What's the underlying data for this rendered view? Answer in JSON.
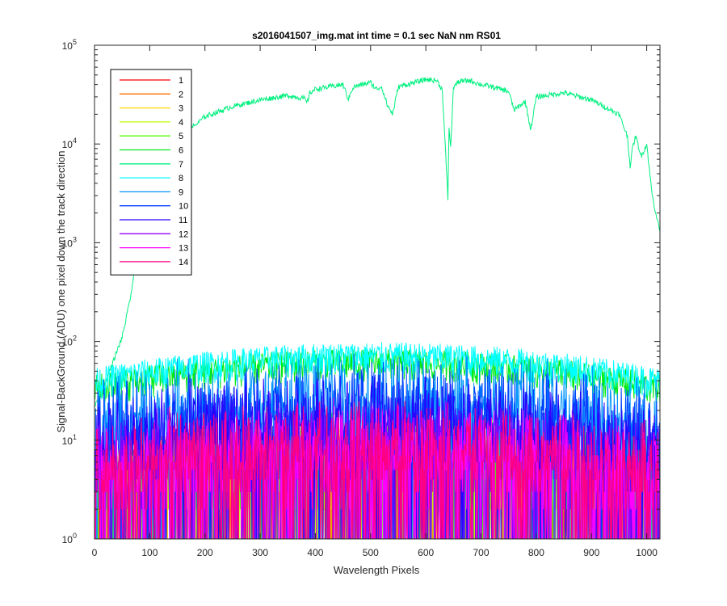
{
  "chart_data": {
    "type": "line",
    "title": "s2016041507_img.mat int time = 0.1 sec  NaN nm RS01",
    "xlabel": "Wavelength Pixels",
    "ylabel": "Signal-BackGround (ADU) one pixel down the track direction",
    "xlim": [
      0,
      1024
    ],
    "ylim": [
      1,
      100000
    ],
    "yscale": "log",
    "grid": false,
    "legend_placement": "top-left",
    "x_ticks": [
      {
        "label": "0",
        "value": 0
      },
      {
        "label": "100",
        "value": 100
      },
      {
        "label": "200",
        "value": 200
      },
      {
        "label": "300",
        "value": 300
      },
      {
        "label": "400",
        "value": 400
      },
      {
        "label": "500",
        "value": 500
      },
      {
        "label": "600",
        "value": 600
      },
      {
        "label": "700",
        "value": 700
      },
      {
        "label": "800",
        "value": 800
      },
      {
        "label": "900",
        "value": 900
      },
      {
        "label": "1000",
        "value": 1000
      }
    ],
    "y_ticks": [
      {
        "base": "10",
        "exp": "0",
        "value": 1
      },
      {
        "base": "10",
        "exp": "1",
        "value": 10
      },
      {
        "base": "10",
        "exp": "2",
        "value": 100
      },
      {
        "base": "10",
        "exp": "3",
        "value": 1000
      },
      {
        "base": "10",
        "exp": "4",
        "value": 10000
      },
      {
        "base": "10",
        "exp": "5",
        "value": 100000
      }
    ],
    "series": [
      {
        "name": "1",
        "color": "#ff0000",
        "level": 6
      },
      {
        "name": "2",
        "color": "#ff6a00",
        "level": 6
      },
      {
        "name": "3",
        "color": "#ffd500",
        "level": 6
      },
      {
        "name": "4",
        "color": "#bfff00",
        "level": 6
      },
      {
        "name": "5",
        "color": "#55ff00",
        "level": 8
      },
      {
        "name": "6",
        "color": "#00ea15",
        "level": 60
      },
      {
        "name": "7",
        "color": "#00f07f",
        "level": 30000,
        "profile_x": [
          0,
          10,
          30,
          50,
          60,
          70,
          75,
          80,
          90,
          100,
          110,
          120,
          130,
          140,
          150,
          160,
          175,
          180,
          200,
          250,
          300,
          350,
          380,
          385,
          390,
          400,
          450,
          460,
          465,
          470,
          500,
          510,
          520,
          530,
          540,
          550,
          580,
          600,
          620,
          630,
          640,
          642,
          645,
          650,
          660,
          680,
          700,
          720,
          750,
          760,
          780,
          790,
          800,
          850,
          900,
          950,
          965,
          970,
          975,
          980,
          990,
          1000,
          1010,
          1015,
          1024
        ],
        "profile_y": [
          22,
          28,
          55,
          110,
          200,
          400,
          900,
          2000,
          4000,
          7000,
          10000,
          13000,
          15000,
          16000,
          16500,
          17000,
          16000,
          15000,
          19000,
          24000,
          28000,
          31000,
          29000,
          26000,
          33000,
          36000,
          40000,
          28000,
          35000,
          38000,
          42000,
          36000,
          38000,
          25000,
          20000,
          38000,
          42000,
          45000,
          44000,
          35000,
          2800,
          15000,
          9000,
          38000,
          43000,
          44000,
          40000,
          38000,
          34000,
          22000,
          27000,
          14000,
          30000,
          33000,
          28000,
          20000,
          12000,
          6000,
          9500,
          12000,
          7500,
          10000,
          3000,
          2200,
          1300
        ]
      },
      {
        "name": "8",
        "color": "#00ffff",
        "level": 70
      },
      {
        "name": "9",
        "color": "#0095ff",
        "level": 30
      },
      {
        "name": "10",
        "color": "#0040ff",
        "level": 25
      },
      {
        "name": "11",
        "color": "#2a00ff",
        "level": 18
      },
      {
        "name": "12",
        "color": "#9500ff",
        "level": 10
      },
      {
        "name": "13",
        "color": "#ff00ff",
        "level": 9
      },
      {
        "name": "14",
        "color": "#ff0080",
        "level": 10
      }
    ]
  }
}
